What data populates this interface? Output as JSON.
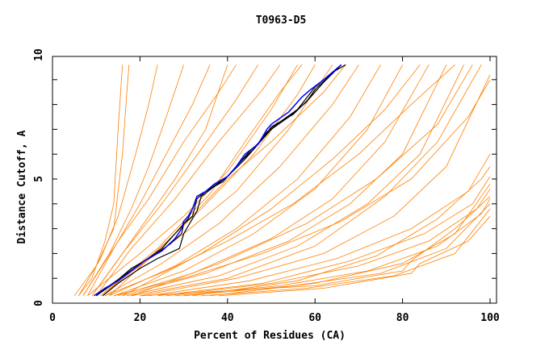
{
  "chart_data": {
    "type": "line",
    "title": "T0963-D5",
    "xlabel": "Percent of Residues (CA)",
    "ylabel": "Distance Cutoff, A",
    "xlim": [
      0,
      100
    ],
    "ylim": [
      0,
      10
    ],
    "xticks": [
      "0",
      "20",
      "40",
      "60",
      "80",
      "100"
    ],
    "yticks": [
      "0",
      "5",
      "10"
    ],
    "colors": {
      "other": "#ff8000",
      "highlight": "#0000ff",
      "group": "#000000"
    },
    "series_other": [
      [
        [
          5,
          0.3
        ],
        [
          10,
          1.5
        ],
        [
          14,
          3
        ],
        [
          16,
          6
        ],
        [
          17,
          8.5
        ],
        [
          17.5,
          9.6
        ]
      ],
      [
        [
          6,
          0.3
        ],
        [
          11,
          1.8
        ],
        [
          15,
          3.5
        ],
        [
          19,
          6
        ],
        [
          22,
          8
        ],
        [
          24,
          9.6
        ]
      ],
      [
        [
          7,
          0.3
        ],
        [
          13,
          2
        ],
        [
          18,
          3.8
        ],
        [
          22,
          5.5
        ],
        [
          26,
          7.5
        ],
        [
          30,
          9.6
        ]
      ],
      [
        [
          8,
          0.3
        ],
        [
          14,
          2.2
        ],
        [
          20,
          4
        ],
        [
          26,
          6
        ],
        [
          32,
          8
        ],
        [
          36,
          9.6
        ]
      ],
      [
        [
          7,
          0.3
        ],
        [
          15,
          2.5
        ],
        [
          22,
          4.2
        ],
        [
          30,
          6.5
        ],
        [
          38,
          8.5
        ],
        [
          42,
          9.6
        ]
      ],
      [
        [
          9,
          0.3
        ],
        [
          16,
          2
        ],
        [
          25,
          4
        ],
        [
          34,
          6.2
        ],
        [
          42,
          8.2
        ],
        [
          47,
          9.6
        ]
      ],
      [
        [
          10,
          0.3
        ],
        [
          18,
          2.2
        ],
        [
          28,
          4.2
        ],
        [
          38,
          6.5
        ],
        [
          48,
          8.6
        ],
        [
          52,
          9.6
        ]
      ],
      [
        [
          8,
          0.3
        ],
        [
          20,
          2
        ],
        [
          30,
          3.5
        ],
        [
          40,
          5.3
        ],
        [
          50,
          7.8
        ],
        [
          56,
          9.6
        ]
      ],
      [
        [
          11,
          0.3
        ],
        [
          22,
          1.8
        ],
        [
          34,
          3.8
        ],
        [
          46,
          6
        ],
        [
          56,
          8.4
        ],
        [
          60,
          9.6
        ]
      ],
      [
        [
          12,
          0.3
        ],
        [
          25,
          1.6
        ],
        [
          38,
          3.2
        ],
        [
          52,
          5.5
        ],
        [
          64,
          8
        ],
        [
          70,
          9.6
        ]
      ],
      [
        [
          13,
          0.3
        ],
        [
          28,
          1.5
        ],
        [
          42,
          3
        ],
        [
          56,
          5
        ],
        [
          68,
          7.5
        ],
        [
          75,
          9.6
        ]
      ],
      [
        [
          14,
          0.3
        ],
        [
          30,
          1.3
        ],
        [
          46,
          2.8
        ],
        [
          60,
          4.6
        ],
        [
          72,
          7
        ],
        [
          80,
          9.6
        ]
      ],
      [
        [
          15,
          0.3
        ],
        [
          32,
          1.2
        ],
        [
          50,
          2.6
        ],
        [
          64,
          4.2
        ],
        [
          76,
          6.5
        ],
        [
          86,
          9.6
        ]
      ],
      [
        [
          16,
          0.3
        ],
        [
          35,
          1.2
        ],
        [
          54,
          2.5
        ],
        [
          68,
          4
        ],
        [
          80,
          6
        ],
        [
          90,
          9.6
        ]
      ],
      [
        [
          17,
          0.3
        ],
        [
          38,
          1.1
        ],
        [
          56,
          2.3
        ],
        [
          72,
          4
        ],
        [
          84,
          6
        ],
        [
          94,
          9.6
        ]
      ],
      [
        [
          18,
          0.3
        ],
        [
          40,
          1
        ],
        [
          60,
          2.3
        ],
        [
          76,
          4.3
        ],
        [
          88,
          6.5
        ],
        [
          98,
          9.6
        ]
      ],
      [
        [
          20,
          0.3
        ],
        [
          42,
          1
        ],
        [
          62,
          2
        ],
        [
          78,
          3.5
        ],
        [
          90,
          5.5
        ],
        [
          100,
          9.2
        ]
      ],
      [
        [
          22,
          0.3
        ],
        [
          45,
          0.9
        ],
        [
          65,
          1.8
        ],
        [
          82,
          3
        ],
        [
          95,
          4.5
        ],
        [
          100,
          6
        ]
      ],
      [
        [
          24,
          0.3
        ],
        [
          48,
          0.8
        ],
        [
          68,
          1.7
        ],
        [
          85,
          2.8
        ],
        [
          96,
          4
        ],
        [
          100,
          5.1
        ]
      ],
      [
        [
          26,
          0.3
        ],
        [
          50,
          0.8
        ],
        [
          70,
          1.5
        ],
        [
          86,
          2.5
        ],
        [
          97,
          3.8
        ],
        [
          100,
          4.6
        ]
      ],
      [
        [
          28,
          0.3
        ],
        [
          52,
          0.7
        ],
        [
          72,
          1.3
        ],
        [
          88,
          2.3
        ],
        [
          98,
          3.6
        ],
        [
          100,
          4.2
        ]
      ],
      [
        [
          30,
          0.3
        ],
        [
          55,
          0.7
        ],
        [
          75,
          1.2
        ],
        [
          90,
          2.2
        ],
        [
          100,
          4
        ]
      ],
      [
        [
          34,
          0.3
        ],
        [
          58,
          0.6
        ],
        [
          78,
          1.1
        ],
        [
          92,
          2
        ],
        [
          100,
          3.8
        ]
      ],
      [
        [
          38,
          0.3
        ],
        [
          62,
          0.6
        ],
        [
          82,
          1.2
        ],
        [
          84,
          1.6
        ],
        [
          95,
          2.5
        ],
        [
          100,
          3.5
        ]
      ],
      [
        [
          20,
          0.3
        ],
        [
          60,
          0.7
        ],
        [
          80,
          1.3
        ],
        [
          82,
          1.7
        ],
        [
          92,
          3
        ],
        [
          97,
          3.8
        ],
        [
          100,
          4.3
        ]
      ],
      [
        [
          6,
          0.3
        ],
        [
          9,
          1
        ],
        [
          12,
          2.5
        ],
        [
          14,
          4
        ],
        [
          15,
          7
        ],
        [
          16,
          9.6
        ]
      ],
      [
        [
          9,
          0.3
        ],
        [
          14,
          1.5
        ],
        [
          20,
          3
        ],
        [
          28,
          5
        ],
        [
          35,
          7
        ],
        [
          40,
          9.6
        ]
      ],
      [
        [
          10,
          0.3
        ],
        [
          20,
          1.5
        ],
        [
          30,
          2.8
        ],
        [
          42,
          4.5
        ],
        [
          54,
          7
        ],
        [
          64,
          9.6
        ]
      ],
      [
        [
          12,
          0.3
        ],
        [
          26,
          1.3
        ],
        [
          40,
          2.5
        ],
        [
          55,
          4
        ],
        [
          70,
          6
        ],
        [
          82,
          8
        ],
        [
          92,
          9.6
        ]
      ],
      [
        [
          14,
          0.3
        ],
        [
          30,
          1
        ],
        [
          48,
          2
        ],
        [
          66,
          3.3
        ],
        [
          82,
          5
        ],
        [
          95,
          7.5
        ],
        [
          100,
          9
        ]
      ],
      [
        [
          32,
          0.3
        ],
        [
          56,
          0.9
        ],
        [
          74,
          1.9
        ],
        [
          88,
          3.4
        ],
        [
          98,
          5
        ],
        [
          100,
          5.5
        ]
      ],
      [
        [
          36,
          0.3
        ],
        [
          60,
          0.8
        ],
        [
          80,
          1.6
        ],
        [
          92,
          2.8
        ],
        [
          100,
          4.8
        ]
      ],
      [
        [
          11,
          0.3
        ],
        [
          24,
          2.2
        ],
        [
          36,
          4.4
        ],
        [
          44,
          6.5
        ],
        [
          52,
          8.5
        ],
        [
          57,
          9.6
        ]
      ],
      [
        [
          13,
          0.3
        ],
        [
          27,
          2.6
        ],
        [
          40,
          5
        ],
        [
          50,
          6.5
        ],
        [
          62,
          8.5
        ],
        [
          67,
          9.6
        ]
      ],
      [
        [
          16,
          0.3
        ],
        [
          34,
          2
        ],
        [
          50,
          3.8
        ],
        [
          64,
          5.8
        ],
        [
          76,
          7.8
        ],
        [
          84,
          9.6
        ]
      ],
      [
        [
          18,
          0.3
        ],
        [
          38,
          1.6
        ],
        [
          58,
          3.2
        ],
        [
          74,
          5
        ],
        [
          88,
          7.2
        ],
        [
          96,
          9.6
        ]
      ]
    ],
    "series_group": [
      [
        [
          10,
          0.3
        ],
        [
          13,
          0.7
        ],
        [
          17,
          1.2
        ],
        [
          21,
          1.7
        ],
        [
          25,
          2.2
        ],
        [
          29,
          3.0
        ],
        [
          31,
          3.4
        ],
        [
          32,
          3.8
        ],
        [
          33,
          4.3
        ],
        [
          36,
          4.6
        ],
        [
          40,
          5.1
        ],
        [
          43,
          5.7
        ],
        [
          46,
          6.2
        ],
        [
          49,
          6.9
        ],
        [
          52,
          7.3
        ],
        [
          56,
          7.8
        ],
        [
          60,
          8.7
        ],
        [
          64,
          9.3
        ],
        [
          67,
          9.6
        ]
      ],
      [
        [
          11.5,
          0.3
        ],
        [
          15,
          0.8
        ],
        [
          20,
          1.4
        ],
        [
          24,
          1.8
        ],
        [
          29,
          2.2
        ],
        [
          30,
          2.8
        ],
        [
          31,
          3.1
        ],
        [
          33,
          3.7
        ],
        [
          34,
          4.3
        ],
        [
          37,
          4.7
        ],
        [
          40,
          5.1
        ],
        [
          44,
          5.8
        ],
        [
          47,
          6.4
        ],
        [
          50,
          7.0
        ],
        [
          54,
          7.5
        ],
        [
          58,
          8.1
        ],
        [
          60,
          8.6
        ],
        [
          63,
          9.1
        ],
        [
          66,
          9.6
        ]
      ],
      [
        [
          10,
          0.3
        ],
        [
          14,
          0.8
        ],
        [
          18,
          1.4
        ],
        [
          23,
          1.9
        ],
        [
          27,
          2.4
        ],
        [
          29.5,
          2.8
        ],
        [
          30,
          3.2
        ],
        [
          32,
          3.5
        ],
        [
          33,
          4.2
        ],
        [
          35,
          4.5
        ],
        [
          39,
          4.9
        ],
        [
          42,
          5.5
        ],
        [
          45,
          6.1
        ],
        [
          48,
          6.6
        ],
        [
          50,
          7.1
        ],
        [
          55,
          7.6
        ],
        [
          59,
          8.3
        ],
        [
          62,
          8.9
        ],
        [
          66,
          9.6
        ]
      ]
    ],
    "series_highlight": [
      [
        9.5,
        0.3
      ],
      [
        12,
        0.6
      ],
      [
        15,
        0.9
      ],
      [
        18,
        1.3
      ],
      [
        21,
        1.7
      ],
      [
        25,
        2.1
      ],
      [
        28,
        2.6
      ],
      [
        29.5,
        3.0
      ],
      [
        30,
        3.3
      ],
      [
        31,
        3.5
      ],
      [
        32,
        3.8
      ],
      [
        33,
        4.3
      ],
      [
        35,
        4.5
      ],
      [
        37,
        4.8
      ],
      [
        40,
        5.1
      ],
      [
        42,
        5.5
      ],
      [
        44,
        6.0
      ],
      [
        47,
        6.4
      ],
      [
        49,
        7.0
      ],
      [
        50,
        7.2
      ],
      [
        54,
        7.7
      ],
      [
        57,
        8.3
      ],
      [
        59,
        8.6
      ],
      [
        62,
        9.0
      ],
      [
        66,
        9.6
      ]
    ]
  }
}
